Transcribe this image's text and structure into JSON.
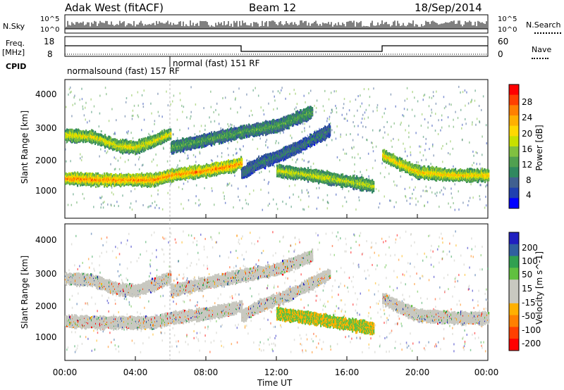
{
  "header": {
    "station": "Adak West (fitACF)",
    "beam": "Beam 12",
    "date": "18/Sep/2014"
  },
  "top_panels": {
    "nsky_label": "N.Sky",
    "nsky_ticks": [
      "10^5",
      "10^0"
    ],
    "nsearch_label": "N.Search",
    "nsearch_ticks": [
      "10^5",
      "10^0"
    ],
    "freq_label": "Freq.",
    "freq_unit": "[MHz]",
    "freq_ticks": [
      "18",
      "8"
    ],
    "nave_label": "Nave",
    "nave_ticks": [
      "60",
      "0"
    ],
    "cpid_label": "CPID",
    "cpid_segments": [
      "normalsound (fast) 157 RF",
      "normal (fast) 151 RF"
    ]
  },
  "x_axis": {
    "label": "Time UT",
    "ticks": [
      "00:00",
      "04:00",
      "08:00",
      "12:00",
      "16:00",
      "20:00",
      "00:00"
    ]
  },
  "chart_data": [
    {
      "type": "heatmap",
      "panel": "power",
      "ylabel": "Slant Range [km]",
      "yticks": [
        "4000",
        "3000",
        "2000",
        "1000"
      ],
      "ylim": [
        0,
        4500
      ],
      "xlim_hours": [
        0,
        24
      ],
      "colorbar_label": "Power [dB]",
      "colorbar_ticks": [
        "28",
        "24",
        "20",
        "16",
        "12",
        "8",
        "4"
      ],
      "colorbar_colors": [
        "#ff0000",
        "#ff4000",
        "#ff8000",
        "#ffb000",
        "#ffd800",
        "#c8e000",
        "#80c040",
        "#50a050",
        "#308860",
        "#406090",
        "#2040b0",
        "#0000ff"
      ],
      "bands": [
        {
          "name": "lower-band",
          "points": [
            [
              0,
              1350
            ],
            [
              2,
              1300
            ],
            [
              5,
              1300
            ],
            [
              6,
              1450
            ],
            [
              8,
              1600
            ],
            [
              9.5,
              1750
            ],
            [
              10,
              1850
            ]
          ],
          "power": 26
        },
        {
          "name": "upper-band",
          "points": [
            [
              0,
              2750
            ],
            [
              1.5,
              2700
            ],
            [
              3,
              2400
            ],
            [
              4,
              2350
            ],
            [
              5,
              2550
            ],
            [
              6,
              2800
            ]
          ],
          "power": 20
        },
        {
          "name": "rising-band",
          "points": [
            [
              6,
              2350
            ],
            [
              8,
              2600
            ],
            [
              10,
              2850
            ],
            [
              12,
              3050
            ],
            [
              14,
              3500
            ]
          ],
          "power": 12
        },
        {
          "name": "mid-band",
          "points": [
            [
              10,
              1500
            ],
            [
              11,
              1850
            ],
            [
              12,
              2050
            ],
            [
              13,
              2300
            ],
            [
              14,
              2600
            ],
            [
              15,
              2900
            ]
          ],
          "power": 8
        },
        {
          "name": "late-band",
          "points": [
            [
              12,
              1600
            ],
            [
              14,
              1450
            ],
            [
              16,
              1250
            ],
            [
              17.5,
              1100
            ]
          ],
          "power": 18
        },
        {
          "name": "evening-band",
          "points": [
            [
              18,
              2100
            ],
            [
              19,
              1800
            ],
            [
              20,
              1550
            ],
            [
              22,
              1450
            ],
            [
              24,
              1450
            ]
          ],
          "power": 22
        }
      ]
    },
    {
      "type": "heatmap",
      "panel": "velocity",
      "ylabel": "Slant Range [km]",
      "yticks": [
        "4000",
        "3000",
        "2000",
        "1000"
      ],
      "ylim": [
        0,
        4500
      ],
      "xlim_hours": [
        0,
        24
      ],
      "colorbar_label": "Velocity [m s^-1]",
      "colorbar_ticks": [
        "200",
        "100",
        "50",
        "15",
        "-15",
        "-50",
        "-100",
        "-200"
      ],
      "colorbar_colors": [
        "#2020c0",
        "#3060a0",
        "#30a050",
        "#60c040",
        "#c8c8c0",
        "#c8c8c0",
        "#ffb000",
        "#ff8000",
        "#ff4000",
        "#ff0000"
      ]
    }
  ]
}
